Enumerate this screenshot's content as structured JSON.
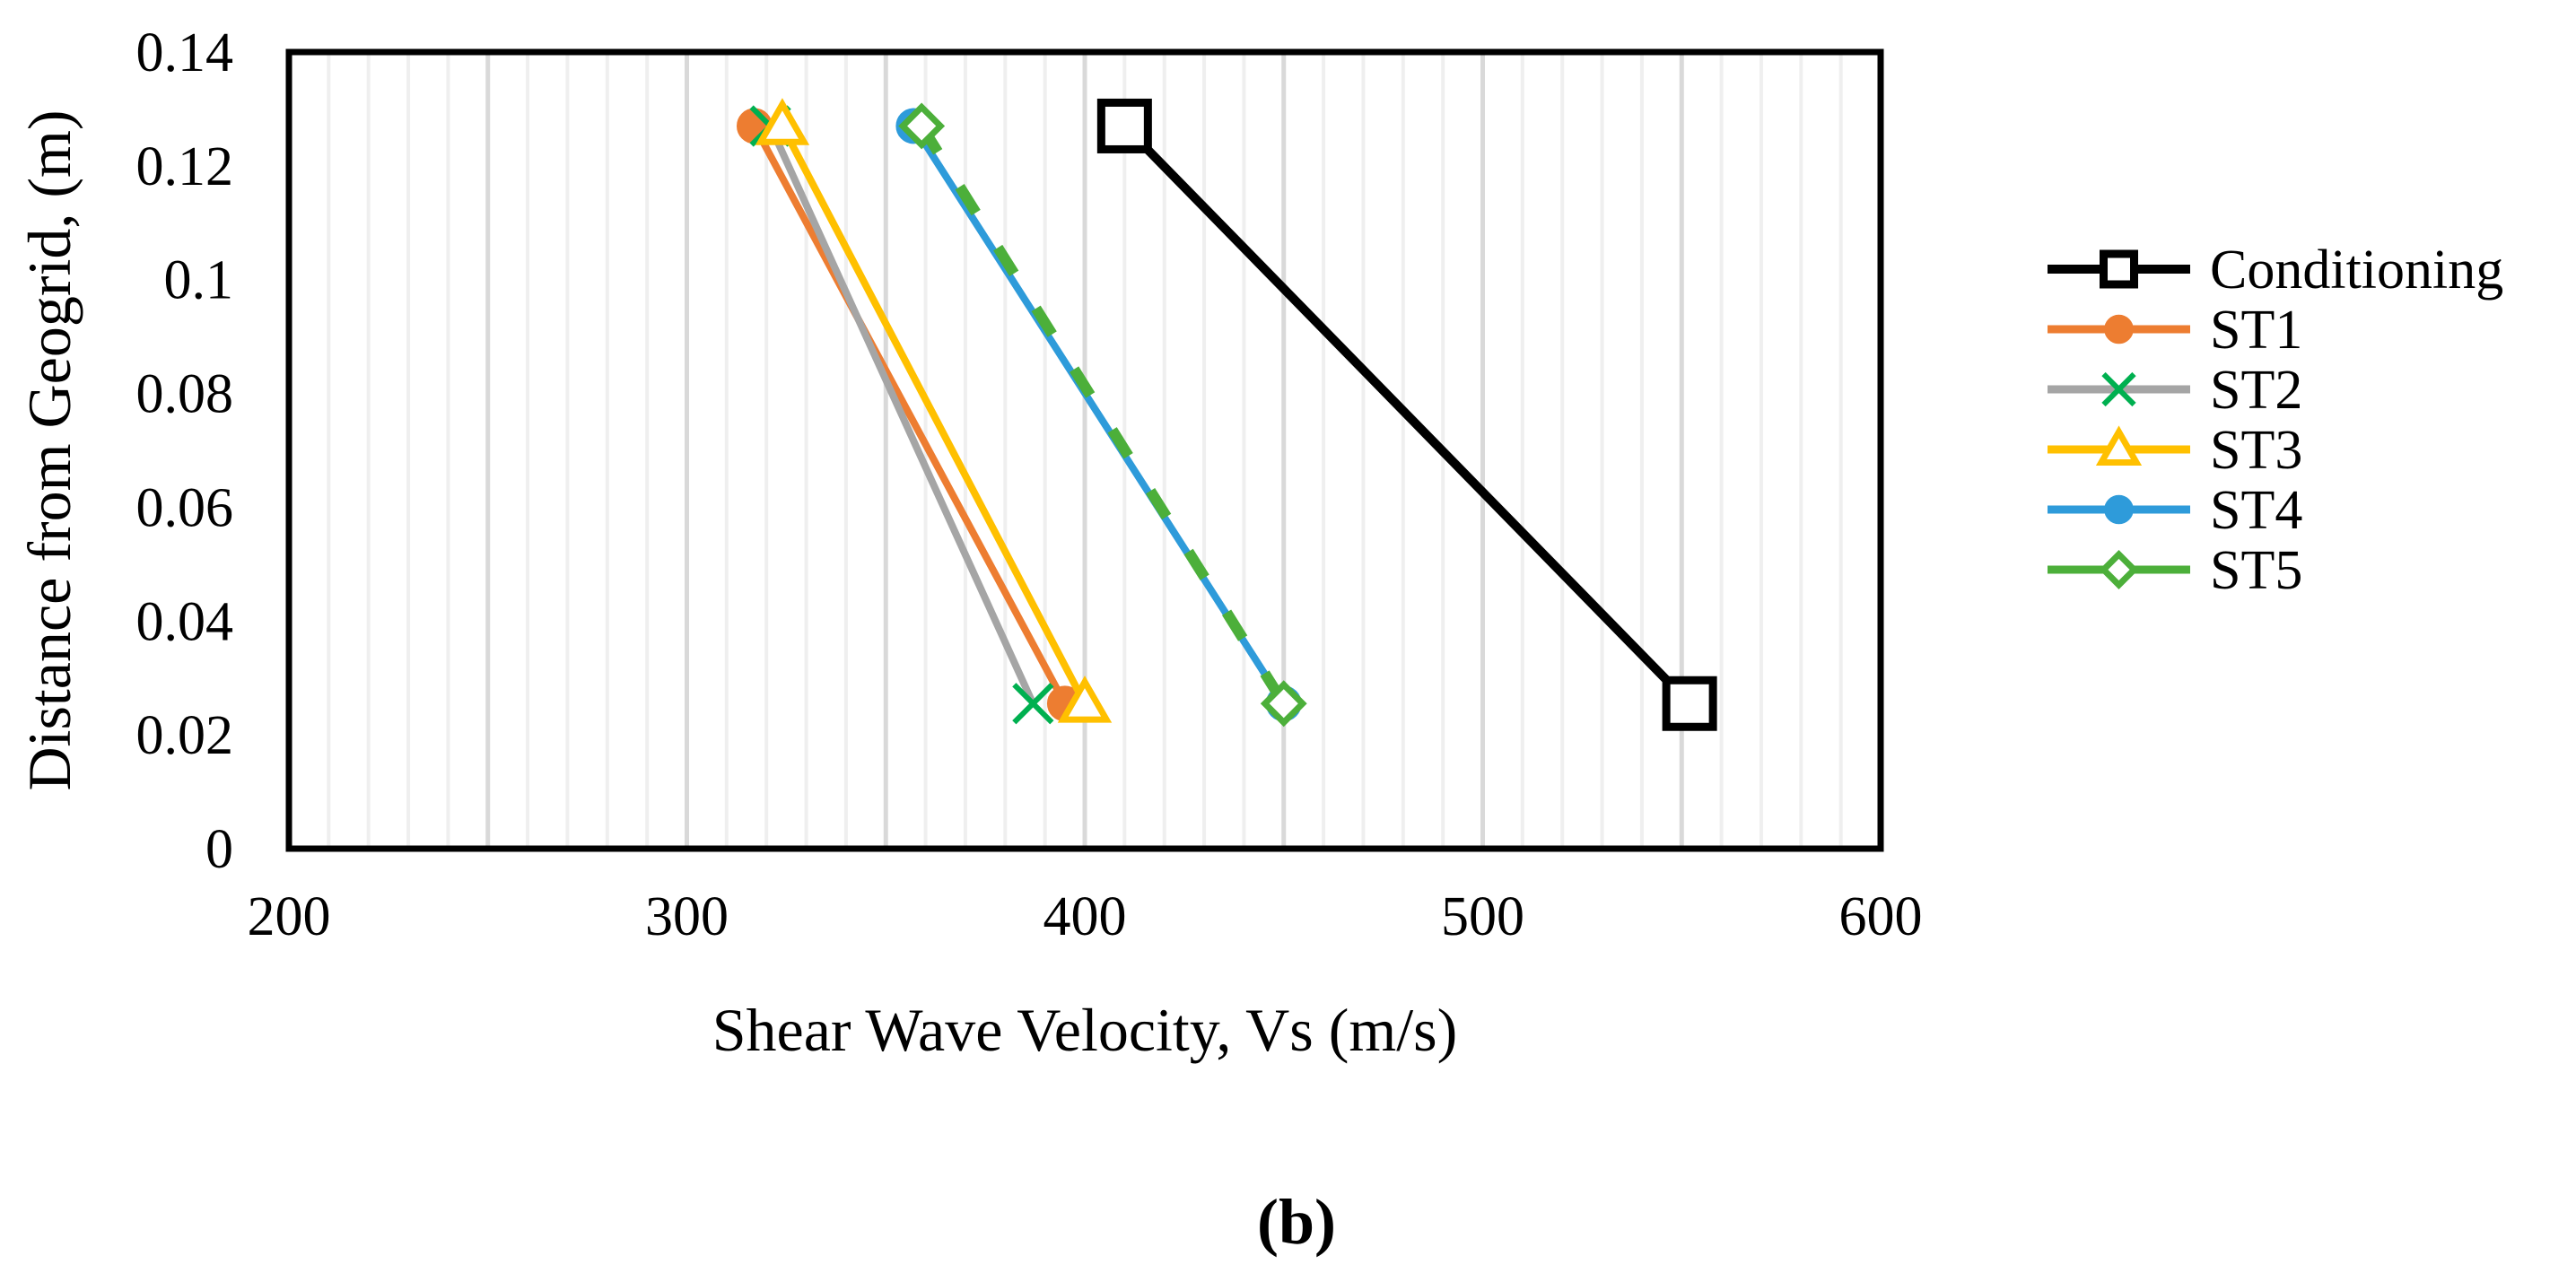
{
  "chart_data": {
    "type": "line",
    "title": "",
    "xlabel": "Shear Wave Velocity, Vs (m/s)",
    "ylabel": "Distance from Geogrid, (m)",
    "xlim": [
      200,
      600
    ],
    "ylim": [
      0,
      0.14
    ],
    "x_ticks": [
      200,
      300,
      400,
      500,
      600
    ],
    "x_tick_labels": [
      "200",
      "300",
      "400",
      "500",
      "600"
    ],
    "y_ticks": [
      0,
      0.02,
      0.04,
      0.06,
      0.08,
      0.1,
      0.12,
      0.14
    ],
    "y_tick_labels": [
      "0",
      "0.02",
      "0.04",
      "0.06",
      "0.08",
      "0.1",
      "0.12",
      "0.14"
    ],
    "grid": "vertical",
    "legend_position": "right",
    "series": [
      {
        "name": "Conditioning",
        "color": "#000000",
        "marker": "square",
        "points": [
          {
            "x": 410,
            "y": 0.127
          },
          {
            "x": 552,
            "y": 0.0255
          }
        ]
      },
      {
        "name": "ST1",
        "color": "#ED7D31",
        "marker": "circle",
        "points": [
          {
            "x": 317,
            "y": 0.127
          },
          {
            "x": 395,
            "y": 0.0255
          }
        ]
      },
      {
        "name": "ST2",
        "color": "#A5A5A5",
        "marker": "x",
        "marker_color": "#00B050",
        "points": [
          {
            "x": 321,
            "y": 0.127
          },
          {
            "x": 387,
            "y": 0.0255
          }
        ]
      },
      {
        "name": "ST3",
        "color": "#FFC000",
        "marker": "triangle",
        "points": [
          {
            "x": 324,
            "y": 0.127
          },
          {
            "x": 400,
            "y": 0.0255
          }
        ]
      },
      {
        "name": "ST4",
        "color": "#2E9BDA",
        "marker": "circle",
        "points": [
          {
            "x": 357,
            "y": 0.127
          },
          {
            "x": 450,
            "y": 0.0255
          }
        ]
      },
      {
        "name": "ST5",
        "color": "#4CAF3A",
        "marker": "diamond",
        "dashed": true,
        "points": [
          {
            "x": 359,
            "y": 0.127
          },
          {
            "x": 450,
            "y": 0.0255
          }
        ]
      }
    ]
  },
  "caption": "(b)"
}
